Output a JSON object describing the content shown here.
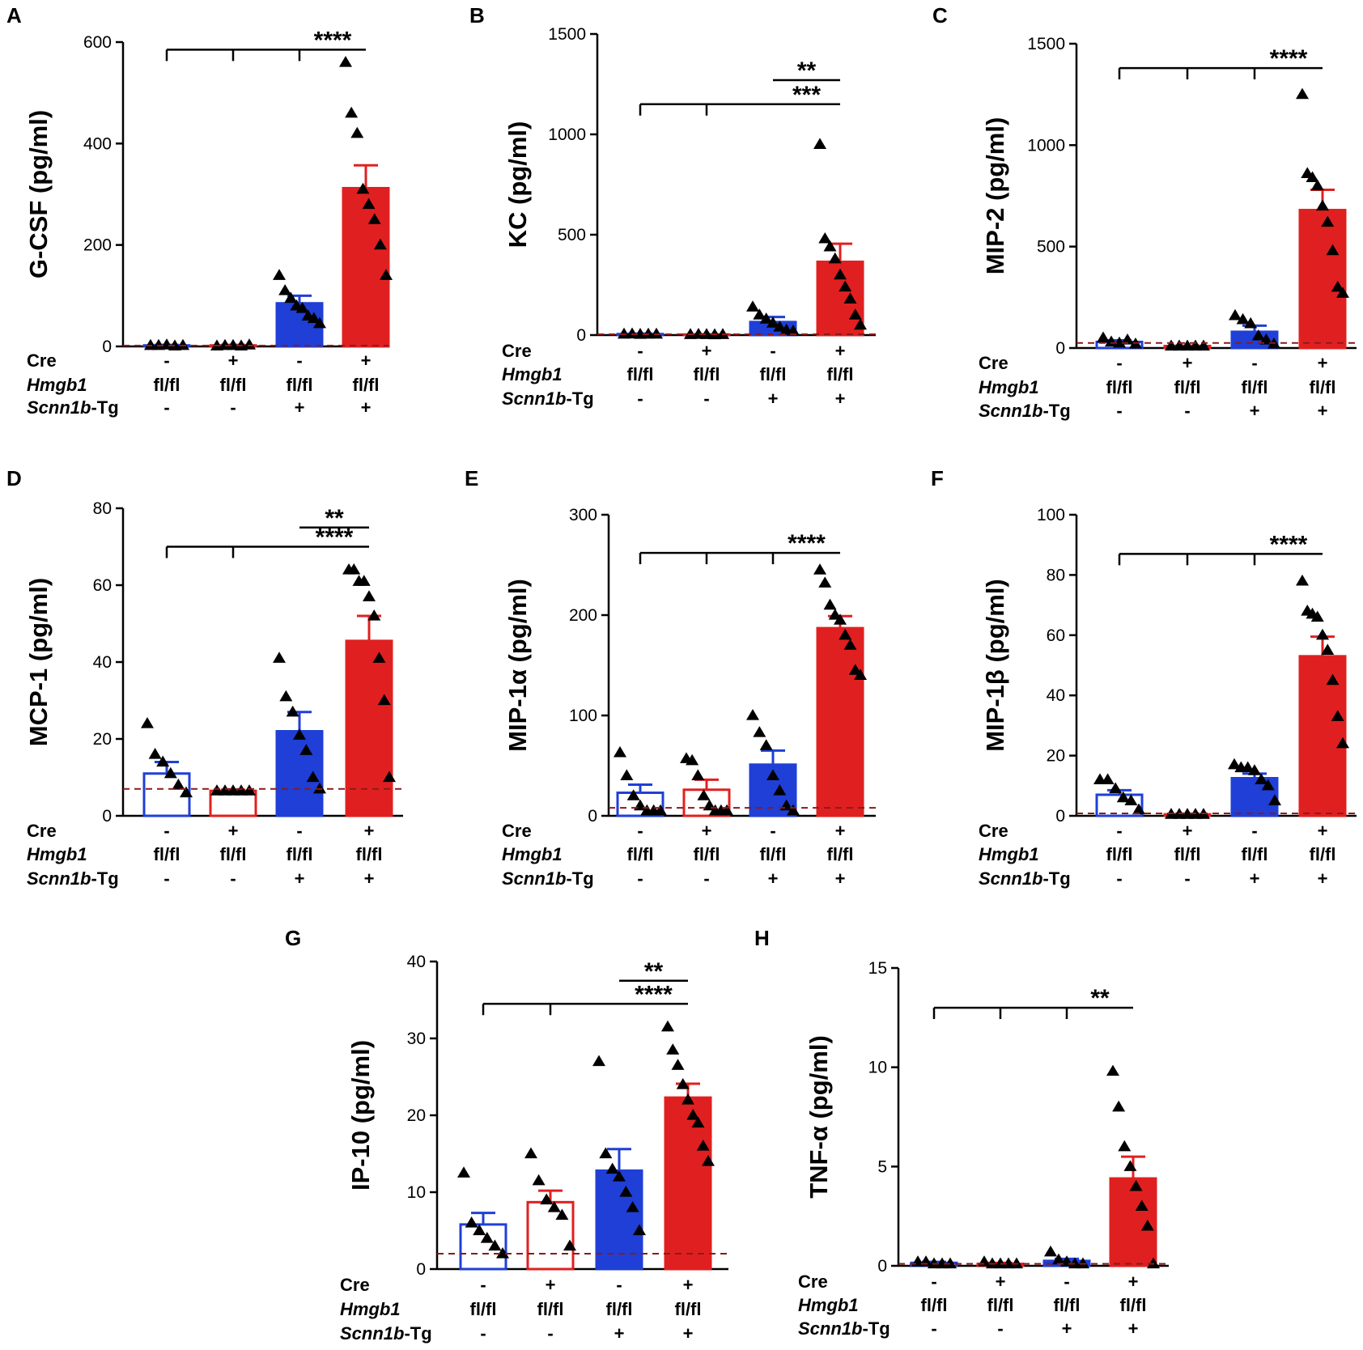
{
  "colors": {
    "ctrl": "#1f3fd6",
    "trans": "#e02020",
    "dashed": "#8b1a1a",
    "axis": "#000000",
    "point": "#000000"
  },
  "conditions": {
    "cre": [
      "-",
      "+",
      "-",
      "+"
    ],
    "hmgb1": [
      "fl/fl",
      "fl/fl",
      "fl/fl",
      "fl/fl"
    ],
    "tg": [
      "-",
      "-",
      "+",
      "+"
    ]
  },
  "row_titles": {
    "cre": "Cre",
    "hmgb1": "Hmgb1",
    "tg_italic": "Scnn1b",
    "tg_suffix": "-Tg"
  },
  "chart_data": [
    {
      "panel": "A",
      "type": "bar",
      "ylabel": "G-CSF (pg/ml)",
      "ylim": [
        0,
        600
      ],
      "yticks": [
        0,
        200,
        400,
        600
      ],
      "dashed_line": null,
      "groups": [
        {
          "cre": "-",
          "tg": "-",
          "mean": 2,
          "sem": 1,
          "points": [
            2,
            2,
            3,
            1,
            2
          ]
        },
        {
          "cre": "+",
          "tg": "-",
          "mean": 2,
          "sem": 1,
          "points": [
            1,
            2,
            2,
            1,
            3
          ]
        },
        {
          "cre": "-",
          "tg": "+",
          "mean": 85,
          "sem": 15,
          "points": [
            140,
            110,
            95,
            80,
            75,
            60,
            55,
            45
          ]
        },
        {
          "cre": "+",
          "tg": "+",
          "mean": 312,
          "sem": 45,
          "points": [
            560,
            460,
            420,
            310,
            280,
            250,
            200,
            140
          ]
        }
      ],
      "significance": [
        {
          "type": "multi",
          "from_groups": [
            1,
            2,
            3
          ],
          "to_group": 4,
          "label": "****",
          "y": 585
        }
      ]
    },
    {
      "panel": "B",
      "type": "bar",
      "ylabel": "KC (pg/ml)",
      "ylim": [
        0,
        1500
      ],
      "yticks": [
        0,
        500,
        1000,
        1500
      ],
      "dashed_line": null,
      "groups": [
        {
          "cre": "-",
          "tg": "-",
          "mean": 5,
          "sem": 2,
          "points": [
            5,
            6,
            4,
            5,
            5
          ]
        },
        {
          "cre": "+",
          "tg": "-",
          "mean": 3,
          "sem": 1,
          "points": [
            3,
            4,
            3,
            2,
            3
          ]
        },
        {
          "cre": "-",
          "tg": "+",
          "mean": 65,
          "sem": 25,
          "points": [
            140,
            100,
            80,
            60,
            40,
            25,
            20
          ]
        },
        {
          "cre": "+",
          "tg": "+",
          "mean": 365,
          "sem": 90,
          "points": [
            950,
            480,
            440,
            380,
            300,
            240,
            180,
            100,
            50
          ]
        }
      ],
      "significance": [
        {
          "type": "multi",
          "from_groups": [
            1,
            2
          ],
          "to_group": 4,
          "label": "***",
          "y": 1150
        },
        {
          "type": "pair",
          "from_group": 3,
          "to_group": 4,
          "label": "**",
          "y": 1270
        }
      ]
    },
    {
      "panel": "C",
      "type": "bar",
      "ylabel": "MIP-2 (pg/ml)",
      "ylim": [
        0,
        1500
      ],
      "yticks": [
        0,
        500,
        1000,
        1500
      ],
      "dashed_line": 25,
      "groups": [
        {
          "cre": "-",
          "tg": "-",
          "mean": 30,
          "sem": 8,
          "points": [
            50,
            30,
            25,
            40,
            20
          ]
        },
        {
          "cre": "+",
          "tg": "-",
          "mean": 10,
          "sem": 2,
          "points": [
            10,
            10,
            10,
            10,
            10
          ]
        },
        {
          "cre": "-",
          "tg": "+",
          "mean": 80,
          "sem": 30,
          "points": [
            160,
            140,
            120,
            60,
            40,
            20
          ]
        },
        {
          "cre": "+",
          "tg": "+",
          "mean": 680,
          "sem": 100,
          "points": [
            1250,
            860,
            840,
            800,
            700,
            620,
            480,
            300,
            270
          ]
        }
      ],
      "significance": [
        {
          "type": "multi",
          "from_groups": [
            1,
            2,
            3
          ],
          "to_group": 4,
          "label": "****",
          "y": 1380
        }
      ]
    },
    {
      "panel": "D",
      "type": "bar",
      "ylabel": "MCP-1 (pg/ml)",
      "ylim": [
        0,
        80
      ],
      "yticks": [
        0,
        20,
        40,
        60,
        80
      ],
      "dashed_line": 7,
      "groups": [
        {
          "cre": "-",
          "tg": "-",
          "mean": 11,
          "sem": 3,
          "points": [
            24,
            16,
            14,
            11,
            8,
            6
          ]
        },
        {
          "cre": "+",
          "tg": "-",
          "mean": 6.5,
          "sem": 0.3,
          "points": [
            6.5,
            6.5,
            6.5,
            6.5,
            6.5
          ]
        },
        {
          "cre": "-",
          "tg": "+",
          "mean": 22,
          "sem": 5,
          "points": [
            41,
            31,
            27,
            21,
            17,
            10,
            7
          ]
        },
        {
          "cre": "+",
          "tg": "+",
          "mean": 45.5,
          "sem": 6.5,
          "points": [
            64,
            64,
            61,
            61,
            57,
            52,
            41,
            30,
            10
          ]
        }
      ],
      "significance": [
        {
          "type": "multi",
          "from_groups": [
            1,
            2
          ],
          "to_group": 4,
          "label": "****",
          "y": 70
        },
        {
          "type": "pair",
          "from_group": 3,
          "to_group": 4,
          "label": "**",
          "y": 75
        }
      ]
    },
    {
      "panel": "E",
      "type": "bar",
      "ylabel": "MIP-1α (pg/ml)",
      "ylim": [
        0,
        300
      ],
      "yticks": [
        0,
        100,
        200,
        300
      ],
      "dashed_line": 8,
      "groups": [
        {
          "cre": "-",
          "tg": "-",
          "mean": 23,
          "sem": 8,
          "points": [
            63,
            40,
            20,
            10,
            5,
            5,
            5
          ]
        },
        {
          "cre": "+",
          "tg": "-",
          "mean": 26,
          "sem": 10,
          "points": [
            57,
            55,
            40,
            20,
            10,
            5,
            5,
            5
          ]
        },
        {
          "cre": "-",
          "tg": "+",
          "mean": 51,
          "sem": 14,
          "points": [
            100,
            83,
            70,
            40,
            25,
            10,
            5
          ]
        },
        {
          "cre": "+",
          "tg": "+",
          "mean": 187,
          "sem": 12,
          "points": [
            245,
            232,
            210,
            200,
            195,
            180,
            170,
            145,
            140
          ]
        }
      ],
      "significance": [
        {
          "type": "multi",
          "from_groups": [
            1,
            2,
            3
          ],
          "to_group": 4,
          "label": "****",
          "y": 262
        }
      ]
    },
    {
      "panel": "F",
      "type": "bar",
      "ylabel": "MIP-1β (pg/ml)",
      "ylim": [
        0,
        100
      ],
      "yticks": [
        0,
        20,
        40,
        60,
        80,
        100
      ],
      "dashed_line": 0.8,
      "groups": [
        {
          "cre": "-",
          "tg": "-",
          "mean": 7,
          "sem": 1.5,
          "points": [
            12,
            12,
            9,
            6,
            5,
            2
          ]
        },
        {
          "cre": "+",
          "tg": "-",
          "mean": 0.5,
          "sem": 0.2,
          "points": [
            0.5,
            0.5,
            0.5,
            0.5,
            0.5
          ]
        },
        {
          "cre": "-",
          "tg": "+",
          "mean": 12.5,
          "sem": 1.5,
          "points": [
            17,
            16,
            16,
            15,
            12,
            10,
            5
          ]
        },
        {
          "cre": "+",
          "tg": "+",
          "mean": 53,
          "sem": 6.5,
          "points": [
            78,
            68,
            67,
            66,
            60,
            55,
            45,
            33,
            24
          ]
        }
      ],
      "significance": [
        {
          "type": "multi",
          "from_groups": [
            1,
            2,
            3
          ],
          "to_group": 4,
          "label": "****",
          "y": 87
        }
      ]
    },
    {
      "panel": "G",
      "type": "bar",
      "ylabel": "IP-10 (pg/ml)",
      "ylim": [
        0,
        40
      ],
      "yticks": [
        0,
        10,
        20,
        30,
        40
      ],
      "dashed_line": 2,
      "groups": [
        {
          "cre": "-",
          "tg": "-",
          "mean": 5.8,
          "sem": 1.5,
          "points": [
            12.5,
            6,
            5,
            4,
            3,
            2
          ]
        },
        {
          "cre": "+",
          "tg": "-",
          "mean": 8.7,
          "sem": 1.5,
          "points": [
            15,
            11.5,
            9,
            8,
            7,
            3
          ]
        },
        {
          "cre": "-",
          "tg": "+",
          "mean": 12.8,
          "sem": 2.8,
          "points": [
            27,
            15,
            13,
            12,
            10,
            8,
            5
          ]
        },
        {
          "cre": "+",
          "tg": "+",
          "mean": 22.3,
          "sem": 1.8,
          "points": [
            31.5,
            28.5,
            26.5,
            24,
            22,
            20,
            19,
            16,
            14
          ]
        }
      ],
      "significance": [
        {
          "type": "multi",
          "from_groups": [
            1,
            2
          ],
          "to_group": 4,
          "label": "****",
          "y": 34.5
        },
        {
          "type": "pair",
          "from_group": 3,
          "to_group": 4,
          "label": "**",
          "y": 37.5
        }
      ]
    },
    {
      "panel": "H",
      "type": "bar",
      "ylabel": "TNF-α (pg/ml)",
      "ylim": [
        0,
        15
      ],
      "yticks": [
        0,
        5,
        10,
        15
      ],
      "dashed_line": 0.1,
      "groups": [
        {
          "cre": "-",
          "tg": "-",
          "mean": 0.15,
          "sem": 0.05,
          "points": [
            0.2,
            0.2,
            0.1,
            0.1,
            0.1
          ]
        },
        {
          "cre": "+",
          "tg": "-",
          "mean": 0.1,
          "sem": 0.05,
          "points": [
            0.2,
            0.1,
            0.1,
            0.1,
            0.1
          ]
        },
        {
          "cre": "-",
          "tg": "+",
          "mean": 0.25,
          "sem": 0.1,
          "points": [
            0.7,
            0.3,
            0.2,
            0.1,
            0.1
          ]
        },
        {
          "cre": "+",
          "tg": "+",
          "mean": 4.4,
          "sem": 1.1,
          "points": [
            9.8,
            8.0,
            6.0,
            5.0,
            4.0,
            3.0,
            2.0,
            0.1
          ]
        }
      ],
      "significance": [
        {
          "type": "multi",
          "from_groups": [
            1,
            2,
            3
          ],
          "to_group": 4,
          "label": "**",
          "y": 13
        }
      ]
    }
  ]
}
